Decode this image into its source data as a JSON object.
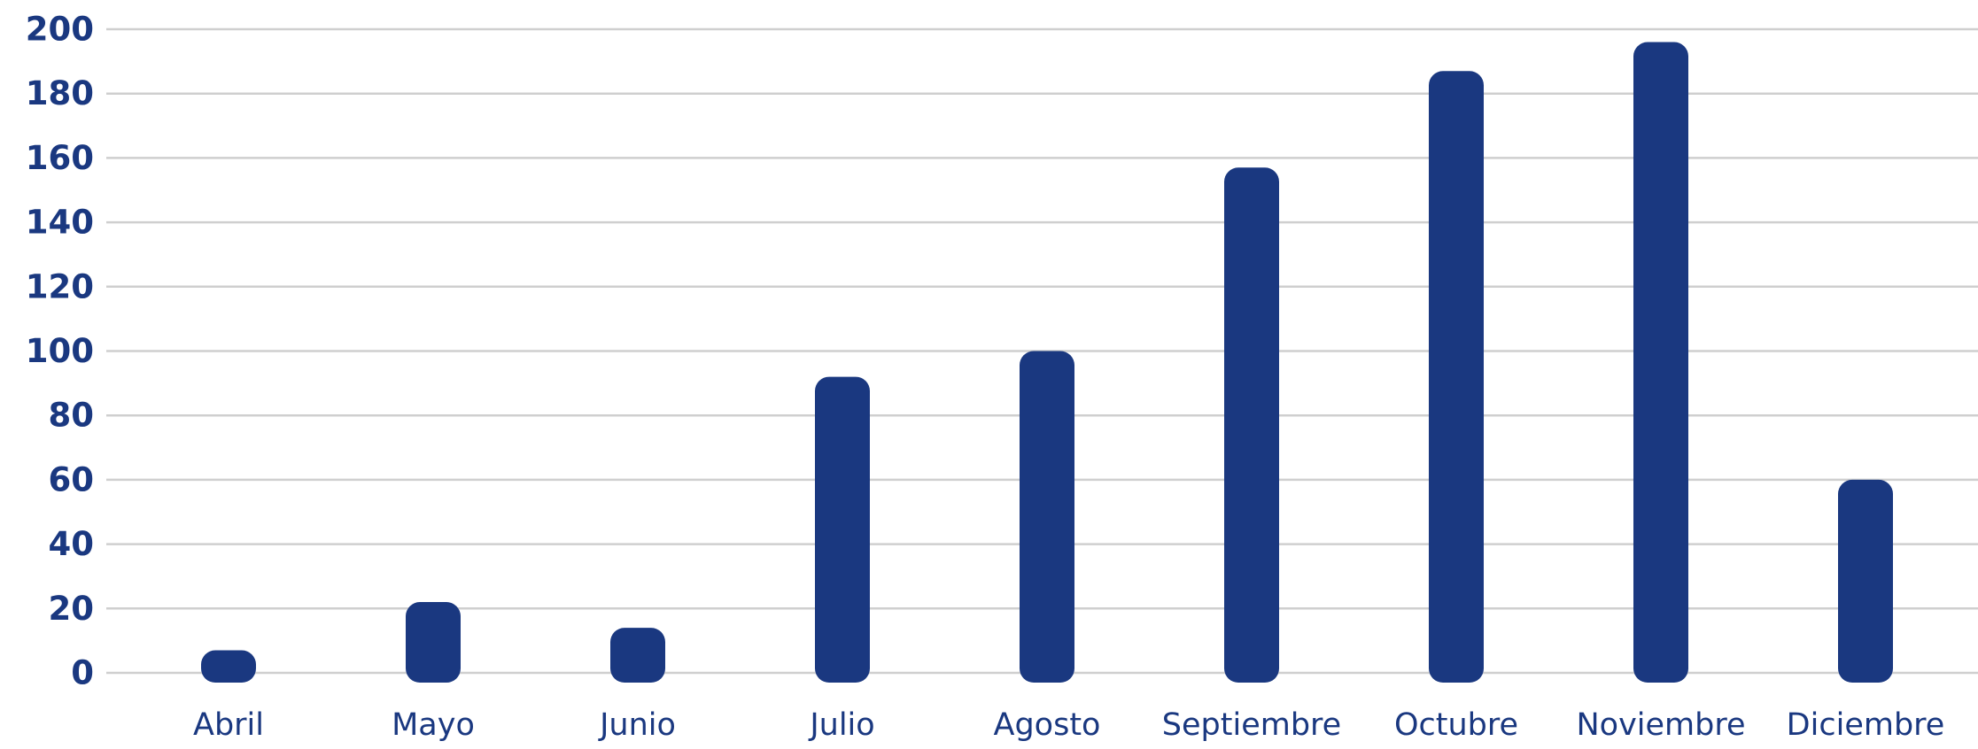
{
  "chart_data": {
    "type": "bar",
    "categories": [
      "Abril",
      "Mayo",
      "Junio",
      "Julio",
      "Agosto",
      "Septiembre",
      "Octubre",
      "Noviembre",
      "Diciembre"
    ],
    "values": [
      7,
      22,
      14,
      92,
      100,
      157,
      187,
      196,
      60
    ],
    "ylim": [
      0,
      200
    ],
    "yticks": [
      0,
      20,
      40,
      60,
      80,
      100,
      120,
      140,
      160,
      180,
      200
    ],
    "title": "",
    "xlabel": "",
    "ylabel": "",
    "grid": true,
    "legend": "none",
    "bar_color": "#1a3880",
    "tick_color": "#1a3880",
    "grid_color": "#cfcfcf"
  }
}
